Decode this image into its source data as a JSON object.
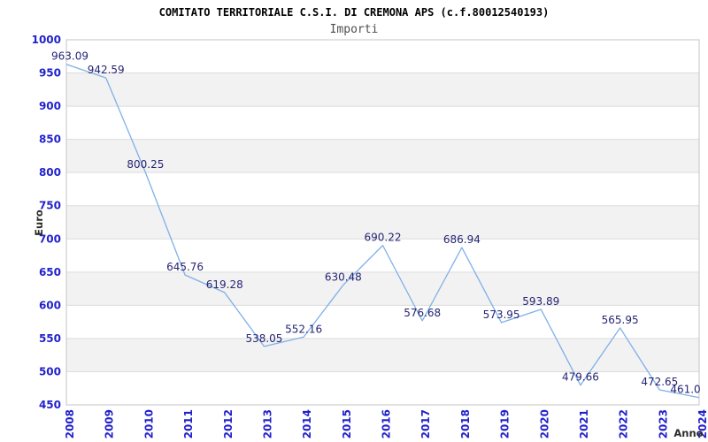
{
  "chart_data": {
    "type": "line",
    "title": "COMITATO TERRITORIALE C.S.I. DI CREMONA APS (c.f.80012540193)",
    "subtitle": "Importi",
    "xlabel": "Anno",
    "ylabel": "Euro",
    "categories": [
      "2008",
      "2009",
      "2010",
      "2011",
      "2012",
      "2013",
      "2014",
      "2015",
      "2016",
      "2017",
      "2018",
      "2019",
      "2020",
      "2021",
      "2022",
      "2023",
      "2024"
    ],
    "values": [
      963.09,
      942.59,
      800.25,
      645.76,
      619.28,
      538.05,
      552.16,
      630.48,
      690.22,
      576.68,
      686.94,
      573.95,
      593.89,
      479.66,
      565.95,
      472.65,
      461.0
    ],
    "point_labels": [
      "963.09",
      "942.59",
      "800.25",
      "645.76",
      "619.28",
      "538.05",
      "552.16",
      "630.48",
      "690.22",
      "576.68",
      "686.94",
      "573.95",
      "593.89",
      "479.66",
      "565.95",
      "472.65",
      "461.0"
    ],
    "ylim": [
      450,
      1000
    ],
    "ytick_step": 50,
    "grid": true,
    "legend": "none",
    "colors": {
      "line": "#7fb0e8",
      "tick_label": "#2222cc",
      "point_label": "#252575",
      "band": "#f2f2f2",
      "gridline": "#dcdcdc",
      "border": "#c4c4c4",
      "axis_title": "#2b2b2b",
      "title": "#000000",
      "subtitle": "#4d4d4d"
    }
  }
}
